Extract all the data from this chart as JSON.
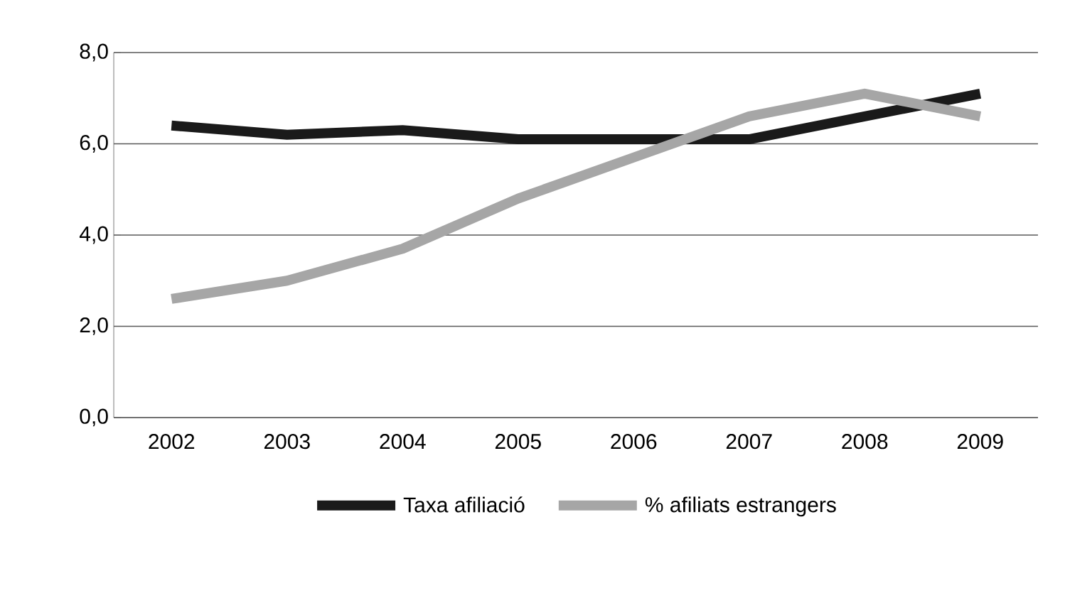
{
  "chart_data": {
    "type": "line",
    "categories": [
      "2002",
      "2003",
      "2004",
      "2005",
      "2006",
      "2007",
      "2008",
      "2009"
    ],
    "series": [
      {
        "name": "Taxa afiliació",
        "color": "#1a1a1a",
        "values": [
          6.4,
          6.2,
          6.3,
          6.1,
          6.1,
          6.1,
          6.6,
          7.1
        ]
      },
      {
        "name": "% afiliats estrangers",
        "color": "#a6a6a6",
        "values": [
          2.6,
          3.0,
          3.7,
          4.8,
          5.7,
          6.6,
          7.1,
          6.6
        ]
      }
    ],
    "ylim": [
      0,
      8
    ],
    "yticks": [
      {
        "value": 0,
        "label": "0,0"
      },
      {
        "value": 2,
        "label": "2,0"
      },
      {
        "value": 4,
        "label": "4,0"
      },
      {
        "value": 6,
        "label": "6,0"
      },
      {
        "value": 8,
        "label": "8,0"
      }
    ],
    "grid": "y",
    "legend": "bottom",
    "marker": "none",
    "line_style": "solid"
  }
}
